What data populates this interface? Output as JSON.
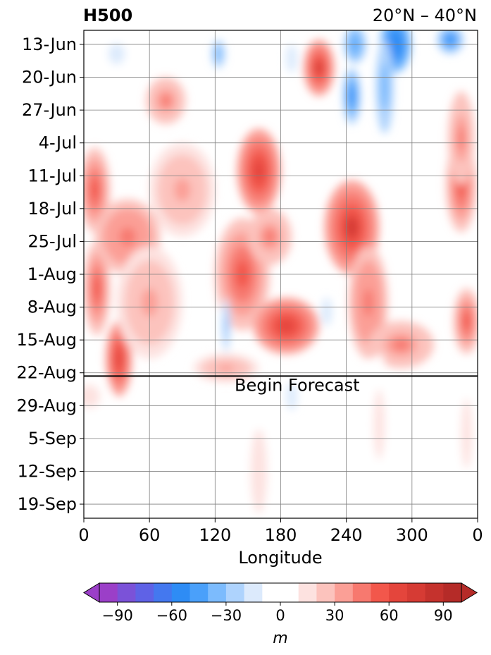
{
  "title_left": "H500",
  "title_right": "20°N – 40°N",
  "chart_data": {
    "type": "heatmap",
    "xlabel": "Longitude",
    "x_ticks": [
      "0",
      "60",
      "120",
      "180",
      "240",
      "300",
      "0"
    ],
    "x_tick_values": [
      0,
      60,
      120,
      180,
      240,
      300,
      360
    ],
    "xlim": [
      0,
      360
    ],
    "y_ticks": [
      "13-Jun",
      "20-Jun",
      "27-Jun",
      "4-Jul",
      "11-Jul",
      "18-Jul",
      "25-Jul",
      "1-Aug",
      "8-Aug",
      "15-Aug",
      "22-Aug",
      "29-Aug",
      "5-Sep",
      "12-Sep",
      "19-Sep"
    ],
    "y_tick_days": [
      3,
      10,
      17,
      24,
      31,
      38,
      45,
      52,
      59,
      66,
      73,
      80,
      87,
      94,
      101
    ],
    "ylim_days": [
      0,
      104
    ],
    "forecast_start_day": 73.7,
    "annotation": "Begin Forecast",
    "grid": true,
    "colorbar": {
      "label": "m",
      "ticks": [
        "−90",
        "−60",
        "−30",
        "0",
        "30",
        "60",
        "90"
      ],
      "tick_values": [
        -90,
        -60,
        -30,
        0,
        30,
        60,
        90
      ],
      "levels": [
        -100,
        -90,
        -80,
        -70,
        -60,
        -50,
        -40,
        -30,
        -20,
        -10,
        10,
        20,
        30,
        40,
        50,
        60,
        70,
        80,
        90,
        100
      ],
      "colors": [
        "#9b3fc8",
        "#7b52d8",
        "#5f62e6",
        "#4478ef",
        "#2e8cf5",
        "#4aa0fa",
        "#7cbbfd",
        "#aed3fd",
        "#dceafc",
        "#ffffff",
        "#fde2e0",
        "#fcc3bd",
        "#fb9f96",
        "#f7796f",
        "#f2574b",
        "#e4453c",
        "#d63b34",
        "#c5322d",
        "#b52b28"
      ],
      "extend": "both",
      "under_color": "#9b3fc8",
      "over_color": "#b52b28"
    },
    "anomaly_blobs": [
      {
        "lon": 10,
        "day": 34,
        "value": 55,
        "rx": 14,
        "ry": 9
      },
      {
        "lon": 12,
        "day": 55,
        "value": 50,
        "rx": 12,
        "ry": 10
      },
      {
        "lon": 32,
        "day": 70,
        "value": 62,
        "rx": 12,
        "ry": 8
      },
      {
        "lon": 40,
        "day": 44,
        "value": 45,
        "rx": 30,
        "ry": 8
      },
      {
        "lon": 75,
        "day": 15,
        "value": 40,
        "rx": 18,
        "ry": 5
      },
      {
        "lon": 90,
        "day": 34,
        "value": 35,
        "rx": 30,
        "ry": 10
      },
      {
        "lon": 160,
        "day": 30,
        "value": 60,
        "rx": 20,
        "ry": 9
      },
      {
        "lon": 145,
        "day": 52,
        "value": 55,
        "rx": 25,
        "ry": 12
      },
      {
        "lon": 170,
        "day": 44,
        "value": 40,
        "rx": 20,
        "ry": 6
      },
      {
        "lon": 185,
        "day": 63,
        "value": 60,
        "rx": 30,
        "ry": 6
      },
      {
        "lon": 215,
        "day": 8,
        "value": 70,
        "rx": 14,
        "ry": 6
      },
      {
        "lon": 245,
        "day": 42,
        "value": 70,
        "rx": 25,
        "ry": 10
      },
      {
        "lon": 260,
        "day": 58,
        "value": 45,
        "rx": 18,
        "ry": 12
      },
      {
        "lon": 290,
        "day": 67,
        "value": 40,
        "rx": 30,
        "ry": 5
      },
      {
        "lon": 345,
        "day": 33,
        "value": 55,
        "rx": 14,
        "ry": 10
      },
      {
        "lon": 350,
        "day": 62,
        "value": 55,
        "rx": 12,
        "ry": 7
      },
      {
        "lon": 345,
        "day": 23,
        "value": 40,
        "rx": 12,
        "ry": 10
      },
      {
        "lon": 130,
        "day": 72,
        "value": 35,
        "rx": 30,
        "ry": 3
      },
      {
        "lon": 60,
        "day": 58,
        "value": 30,
        "rx": 30,
        "ry": 12
      },
      {
        "lon": 285,
        "day": 3,
        "value": -60,
        "rx": 14,
        "ry": 6
      },
      {
        "lon": 275,
        "day": 12,
        "value": -40,
        "rx": 8,
        "ry": 10
      },
      {
        "lon": 245,
        "day": 14,
        "value": -55,
        "rx": 8,
        "ry": 6
      },
      {
        "lon": 248,
        "day": 3,
        "value": -45,
        "rx": 10,
        "ry": 4
      },
      {
        "lon": 123,
        "day": 5,
        "value": -40,
        "rx": 6,
        "ry": 3
      },
      {
        "lon": 130,
        "day": 63,
        "value": -35,
        "rx": 4,
        "ry": 6
      },
      {
        "lon": 335,
        "day": 2,
        "value": -55,
        "rx": 12,
        "ry": 3
      },
      {
        "lon": 30,
        "day": 5,
        "value": -15,
        "rx": 10,
        "ry": 3
      },
      {
        "lon": 190,
        "day": 6,
        "value": -20,
        "rx": 5,
        "ry": 3
      },
      {
        "lon": 222,
        "day": 60,
        "value": -20,
        "rx": 5,
        "ry": 3
      },
      {
        "lon": 190,
        "day": 78,
        "value": -20,
        "rx": 5,
        "ry": 3
      },
      {
        "lon": 160,
        "day": 94,
        "value": 12,
        "rx": 15,
        "ry": 18
      },
      {
        "lon": 5,
        "day": 78,
        "value": 12,
        "rx": 20,
        "ry": 5
      },
      {
        "lon": 270,
        "day": 84,
        "value": 12,
        "rx": 10,
        "ry": 15
      },
      {
        "lon": 350,
        "day": 86,
        "value": 12,
        "rx": 10,
        "ry": 15
      }
    ]
  }
}
